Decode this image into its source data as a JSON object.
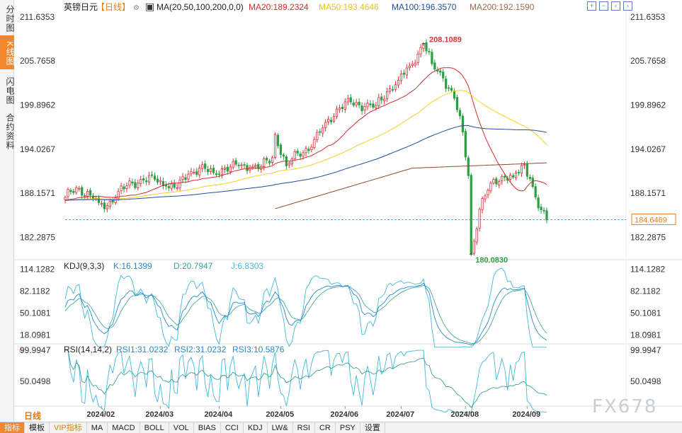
{
  "sidebar": {
    "tabs": [
      {
        "label": "分时图",
        "active": false
      },
      {
        "label": "K线图",
        "active": true
      },
      {
        "label": "闪电图",
        "active": false
      },
      {
        "label": "合约资料",
        "active": false
      }
    ]
  },
  "header": {
    "symbol": "英镑日元",
    "period_tag": "【日线】",
    "settings_icon": "settings-icon",
    "ma_label": "MA(20,50,100,200,0,0)",
    "ma20": "MA20:189.2324",
    "ma50": "MA50:193.4646",
    "ma100": "MA100:196.3570",
    "ma200": "MA200:192.1590"
  },
  "toolbar_icons": [
    "zoom-in-icon",
    "zoom-out-icon",
    "pan-left-icon",
    "pan-right-icon"
  ],
  "price_axis": {
    "ticks": [
      "211.6353",
      "205.7658",
      "199.8962",
      "194.0267",
      "188.1571",
      "182.2875"
    ],
    "current": "184.6469"
  },
  "annotations": {
    "high": "208.1089",
    "low": "180.0830"
  },
  "kdj": {
    "label": "KDJ(9,3,3)",
    "k": "K:16.1399",
    "d": "D:20.7947",
    "j": "J:6.8303",
    "ticks": [
      "114.1282",
      "82.1182",
      "50.1081",
      "18.0981"
    ]
  },
  "rsi": {
    "label": "RSI(14,14,2)",
    "r1": "RSI1:31.0232",
    "r2": "RSI2:31.0232",
    "r3": "RSI3:10.5876",
    "ticks": [
      "99.9947",
      "50.0498"
    ]
  },
  "x_axis": {
    "ticks": [
      "2024/02",
      "2024/03",
      "2024/04",
      "2024/05",
      "2024/06",
      "2024/07",
      "2024/08",
      "2024/09"
    ]
  },
  "period_button": "日线",
  "bottom_bar": [
    "指标",
    "模板",
    "VIP指标",
    "MA",
    "MACD",
    "BOLL",
    "VOL",
    "BIAS",
    "CCI",
    "KDJ",
    "LW&",
    "RSI",
    "CR",
    "PSY",
    "设置"
  ],
  "watermark": "FX678",
  "colors": {
    "up": "#d9343b",
    "down": "#2e9e45",
    "ma20": "#d62b2b",
    "ma50": "#f5d020",
    "ma100": "#1f4e9b",
    "ma200": "#8b4a2b",
    "k": "#2a88c9",
    "d": "#46a6a0",
    "j": "#41b9d9"
  },
  "chart_data": {
    "type": "candlestick",
    "title": "英镑日元 日线",
    "y_range": [
      179.5,
      212.0
    ],
    "anchors": [
      [
        "2024-01-15",
        187.6
      ],
      [
        "2024-01-19",
        188.9
      ],
      [
        "2024-01-26",
        187.9
      ],
      [
        "2024-01-31",
        186.9
      ],
      [
        "2024-02-05",
        186.5
      ],
      [
        "2024-02-09",
        188.4
      ],
      [
        "2024-02-16",
        189.5
      ],
      [
        "2024-02-22",
        189.9
      ],
      [
        "2024-02-28",
        190.0
      ],
      [
        "2024-03-05",
        189.1
      ],
      [
        "2024-03-11",
        188.9
      ],
      [
        "2024-03-15",
        190.7
      ],
      [
        "2024-03-21",
        191.5
      ],
      [
        "2024-03-28",
        190.9
      ],
      [
        "2024-04-03",
        191.5
      ],
      [
        "2024-04-10",
        191.8
      ],
      [
        "2024-04-16",
        191.6
      ],
      [
        "2024-04-22",
        191.7
      ],
      [
        "2024-04-26",
        192.9
      ],
      [
        "2024-04-29",
        196.0
      ],
      [
        "2024-05-03",
        191.8
      ],
      [
        "2024-05-09",
        193.5
      ],
      [
        "2024-05-16",
        194.3
      ],
      [
        "2024-05-23",
        197.6
      ],
      [
        "2024-05-30",
        199.5
      ],
      [
        "2024-06-05",
        200.3
      ],
      [
        "2024-06-12",
        199.7
      ],
      [
        "2024-06-18",
        199.8
      ],
      [
        "2024-06-24",
        201.7
      ],
      [
        "2024-06-28",
        203.2
      ],
      [
        "2024-07-04",
        205.1
      ],
      [
        "2024-07-09",
        206.7
      ],
      [
        "2024-07-11",
        208.1
      ],
      [
        "2024-07-16",
        205.4
      ],
      [
        "2024-07-22",
        203.5
      ],
      [
        "2024-07-26",
        200.8
      ],
      [
        "2024-07-31",
        196.3
      ],
      [
        "2024-08-02",
        190.5
      ],
      [
        "2024-08-05",
        180.1
      ],
      [
        "2024-08-08",
        186.0
      ],
      [
        "2024-08-14",
        189.5
      ],
      [
        "2024-08-20",
        190.4
      ],
      [
        "2024-08-26",
        190.3
      ],
      [
        "2024-08-30",
        192.0
      ],
      [
        "2024-09-03",
        190.1
      ],
      [
        "2024-09-06",
        186.2
      ],
      [
        "2024-09-11",
        184.6
      ]
    ],
    "ma200_anchors": [
      [
        "2024-04-29",
        186.1
      ],
      [
        "2024-07-05",
        191.5
      ],
      [
        "2024-09-11",
        192.2
      ]
    ],
    "kdj_range": [
      5,
      125
    ],
    "rsi_range": [
      10,
      108
    ],
    "last_values": {
      "K": 16.1399,
      "D": 20.7947,
      "J": 6.8303,
      "RSI1": 31.0232,
      "RSI3": 10.5876
    }
  }
}
